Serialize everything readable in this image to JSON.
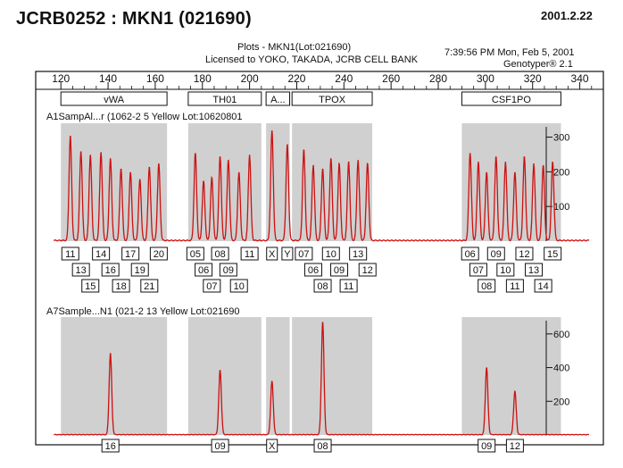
{
  "header": {
    "title": "JCRB0252 : MKN1 (021690)",
    "date": "2001.2.22"
  },
  "plot_header": {
    "plots_line": "Plots  -  MKN1(Lot:021690)",
    "license_line": "Licensed to YOKO, TAKADA, JCRB CELL BANK",
    "time_line": "7:39:56 PM  Mon, Feb 5, 2001",
    "software": "Genotyper® 2.1"
  },
  "colors": {
    "trace": "#cc1111",
    "band": "#d0d0d0",
    "axis": "#111111"
  },
  "chart_data": {
    "type": "line",
    "x_axis": {
      "range": [
        115,
        350
      ],
      "ticks": [
        120,
        140,
        160,
        180,
        200,
        220,
        240,
        260,
        280,
        300,
        320,
        340
      ]
    },
    "loci": [
      {
        "label": "vWA",
        "range": [
          120,
          165
        ]
      },
      {
        "label": "TH01",
        "range": [
          174,
          205
        ]
      },
      {
        "label": "A...",
        "range": [
          207,
          217
        ]
      },
      {
        "label": "TPOX",
        "range": [
          218,
          252
        ]
      },
      {
        "label": "CSF1PO",
        "range": [
          290,
          332
        ]
      }
    ],
    "panels": [
      {
        "label": "A1SampAl...r (1062-2  5 Yellow  Lot:10620801",
        "y_range": [
          0,
          340
        ],
        "y_ticks": [
          100,
          200,
          300
        ],
        "peaks": [
          {
            "x": 124,
            "h": 300,
            "allele": "11",
            "row": 0
          },
          {
            "x": 128.5,
            "h": 255,
            "allele": "13",
            "row": 1
          },
          {
            "x": 132.5,
            "h": 245,
            "allele": "15",
            "row": 2
          },
          {
            "x": 137,
            "h": 252,
            "allele": "14",
            "row": 0
          },
          {
            "x": 141,
            "h": 235,
            "allele": "16",
            "row": 1
          },
          {
            "x": 145.5,
            "h": 205,
            "allele": "18",
            "row": 2
          },
          {
            "x": 149.5,
            "h": 195,
            "allele": "17",
            "row": 0
          },
          {
            "x": 153.5,
            "h": 175,
            "allele": "19",
            "row": 1
          },
          {
            "x": 157.5,
            "h": 210,
            "allele": "21",
            "row": 2
          },
          {
            "x": 161.5,
            "h": 220,
            "allele": "20",
            "row": 0
          },
          {
            "x": 177,
            "h": 250,
            "allele": "05",
            "row": 0
          },
          {
            "x": 180.5,
            "h": 170,
            "allele": "06",
            "row": 1
          },
          {
            "x": 184,
            "h": 180,
            "allele": "07",
            "row": 2
          },
          {
            "x": 187.5,
            "h": 240,
            "allele": "08",
            "row": 0
          },
          {
            "x": 191,
            "h": 230,
            "allele": "09",
            "row": 1
          },
          {
            "x": 195.5,
            "h": 195,
            "allele": "10",
            "row": 2
          },
          {
            "x": 200,
            "h": 245,
            "allele": "11",
            "row": 0
          },
          {
            "x": 209.5,
            "h": 315,
            "allele": "X",
            "row": 0
          },
          {
            "x": 216,
            "h": 275,
            "allele": "Y",
            "row": 0
          },
          {
            "x": 223,
            "h": 260,
            "allele": "07",
            "row": 0
          },
          {
            "x": 227,
            "h": 215,
            "allele": "06",
            "row": 1
          },
          {
            "x": 231,
            "h": 205,
            "allele": "08",
            "row": 2
          },
          {
            "x": 234.5,
            "h": 235,
            "allele": "10",
            "row": 0
          },
          {
            "x": 238,
            "h": 220,
            "allele": "09",
            "row": 1
          },
          {
            "x": 242,
            "h": 225,
            "allele": "11",
            "row": 2
          },
          {
            "x": 246,
            "h": 230,
            "allele": "13",
            "row": 0
          },
          {
            "x": 250,
            "h": 220,
            "allele": "12",
            "row": 1
          },
          {
            "x": 293.5,
            "h": 250,
            "allele": "06",
            "row": 0
          },
          {
            "x": 297,
            "h": 225,
            "allele": "07",
            "row": 1
          },
          {
            "x": 300.5,
            "h": 195,
            "allele": "08",
            "row": 2
          },
          {
            "x": 304.5,
            "h": 240,
            "allele": "09",
            "row": 0
          },
          {
            "x": 308.5,
            "h": 225,
            "allele": "10",
            "row": 1
          },
          {
            "x": 312.5,
            "h": 195,
            "allele": "11",
            "row": 2
          },
          {
            "x": 316.5,
            "h": 240,
            "allele": "12",
            "row": 0
          },
          {
            "x": 320.5,
            "h": 220,
            "allele": "13",
            "row": 1
          },
          {
            "x": 324.5,
            "h": 215,
            "allele": "14",
            "row": 2
          },
          {
            "x": 328.5,
            "h": 225,
            "allele": "15",
            "row": 0
          }
        ]
      },
      {
        "label": "A7Sample...N1 (021-2  13 Yellow  Lot:021690",
        "y_range": [
          0,
          700
        ],
        "y_ticks": [
          200,
          400,
          600
        ],
        "peaks": [
          {
            "x": 141,
            "h": 480,
            "allele": "16",
            "row": 0
          },
          {
            "x": 187.5,
            "h": 380,
            "allele": "09",
            "row": 0
          },
          {
            "x": 209.5,
            "h": 315,
            "allele": "X",
            "row": 0
          },
          {
            "x": 231,
            "h": 665,
            "allele": "08",
            "row": 0
          },
          {
            "x": 300.5,
            "h": 395,
            "allele": "09",
            "row": 0
          },
          {
            "x": 312.5,
            "h": 255,
            "allele": "12",
            "row": 0
          }
        ]
      }
    ]
  }
}
